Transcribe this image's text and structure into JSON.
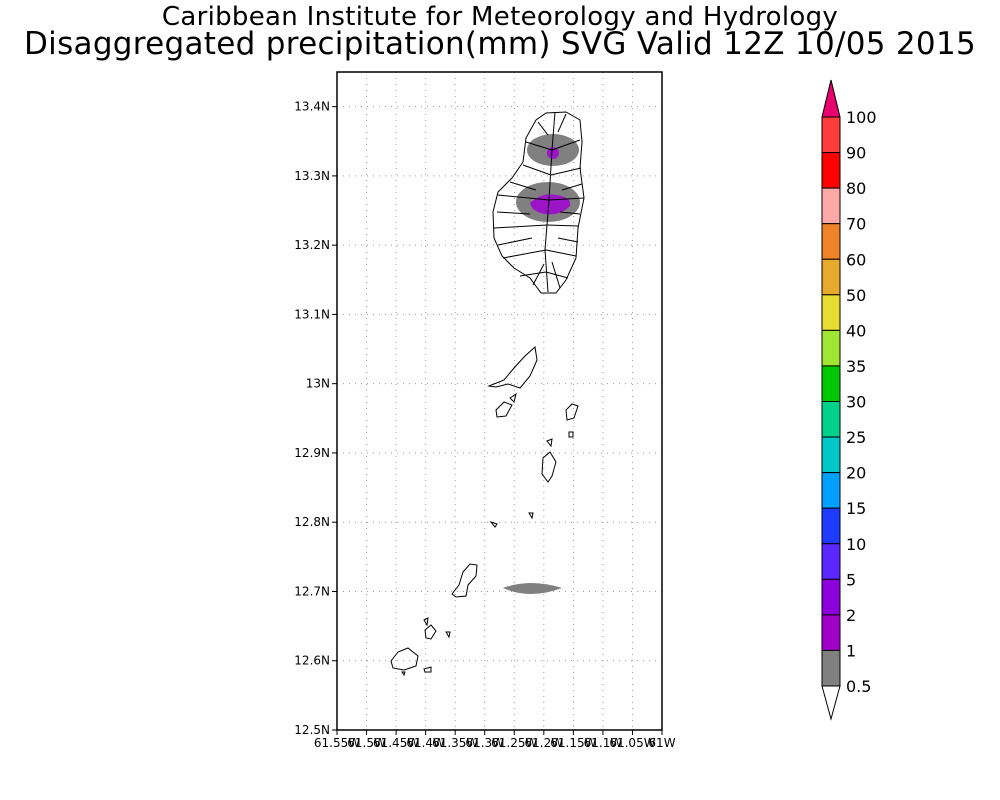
{
  "header": {
    "title1": "Caribbean Institute for Meteorology and Hydrology",
    "title2": "Disaggregated precipitation(mm) SVG Valid 12Z 10/05 2015"
  },
  "map": {
    "lat_range": [
      12.5,
      13.45
    ],
    "lon_range": [
      -61.55,
      -61.0
    ],
    "y_ticks": [
      {
        "lat": 12.5,
        "label": "12.5N"
      },
      {
        "lat": 12.6,
        "label": "12.6N"
      },
      {
        "lat": 12.7,
        "label": "12.7N"
      },
      {
        "lat": 12.8,
        "label": "12.8N"
      },
      {
        "lat": 12.9,
        "label": "12.9N"
      },
      {
        "lat": 13.0,
        "label": "13N"
      },
      {
        "lat": 13.1,
        "label": "13.1N"
      },
      {
        "lat": 13.2,
        "label": "13.2N"
      },
      {
        "lat": 13.3,
        "label": "13.3N"
      },
      {
        "lat": 13.4,
        "label": "13.4N"
      }
    ],
    "x_ticks": [
      {
        "lon": -61.55,
        "label": "61.55W"
      },
      {
        "lon": -61.5,
        "label": "61.5W"
      },
      {
        "lon": -61.45,
        "label": "61.45W"
      },
      {
        "lon": -61.4,
        "label": "61.4W"
      },
      {
        "lon": -61.35,
        "label": "61.35W"
      },
      {
        "lon": -61.3,
        "label": "61.3W"
      },
      {
        "lon": -61.25,
        "label": "61.25W"
      },
      {
        "lon": -61.2,
        "label": "61.2W"
      },
      {
        "lon": -61.15,
        "label": "61.15W"
      },
      {
        "lon": -61.1,
        "label": "61.1W"
      },
      {
        "lon": -61.05,
        "label": "61.05W"
      },
      {
        "lon": -61.0,
        "label": "61W"
      }
    ],
    "grid": true
  },
  "legend": {
    "labels": [
      "100",
      "90",
      "80",
      "70",
      "60",
      "50",
      "40",
      "35",
      "30",
      "25",
      "20",
      "15",
      "10",
      "5",
      "2",
      "1",
      "0.5"
    ],
    "colors": [
      "#e8006e",
      "#ff3c3c",
      "#ff0000",
      "#ffa8a8",
      "#f08228",
      "#e8aa2d",
      "#e6dc32",
      "#a0e632",
      "#00c800",
      "#00d28c",
      "#00c8c8",
      "#00a0ff",
      "#1e3cff",
      "#5a28ff",
      "#8c00dc",
      "#a000c8",
      "#808080",
      "#ffffff"
    ]
  },
  "colors": {
    "precip_light": "#808080",
    "precip_2mm": "#9b14c8"
  }
}
